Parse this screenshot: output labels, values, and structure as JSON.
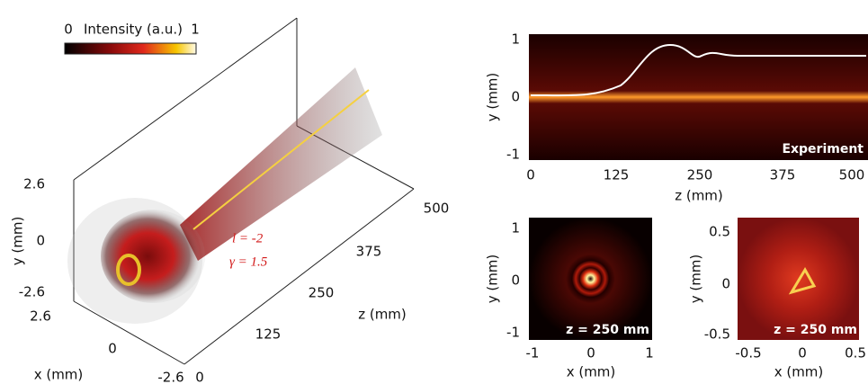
{
  "colorbar": {
    "min": 0,
    "label": "Intensity (a.u.)",
    "max": 1
  },
  "panel_3d": {
    "x_label": "x (mm)",
    "y_label": "y (mm)",
    "z_label": "z (mm)",
    "x_ticks": [
      2.6,
      0,
      -2.6
    ],
    "y_ticks": [
      2.6,
      0,
      -2.6
    ],
    "z_ticks": [
      0,
      125,
      250,
      375,
      500
    ],
    "annotations": [
      "l = -2",
      "γ = 1.5"
    ]
  },
  "panel_top": {
    "x_label": "z (mm)",
    "y_label": "y (mm)",
    "x_ticks": [
      0,
      125,
      250,
      375,
      500
    ],
    "y_ticks": [
      1,
      0,
      -1
    ],
    "tag": "Experiment"
  },
  "panel_bottom_left": {
    "x_label": "x (mm)",
    "y_label": "y (mm)",
    "x_ticks": [
      -1,
      0,
      1
    ],
    "y_ticks": [
      1,
      0,
      -1
    ],
    "tag": "z = 250 mm"
  },
  "panel_bottom_right": {
    "x_label": "x (mm)",
    "y_label": "y (mm)",
    "x_ticks": [
      -0.5,
      0,
      0.5
    ],
    "y_ticks": [
      0.5,
      0,
      -0.5
    ],
    "tag": "z = 250 mm"
  }
}
